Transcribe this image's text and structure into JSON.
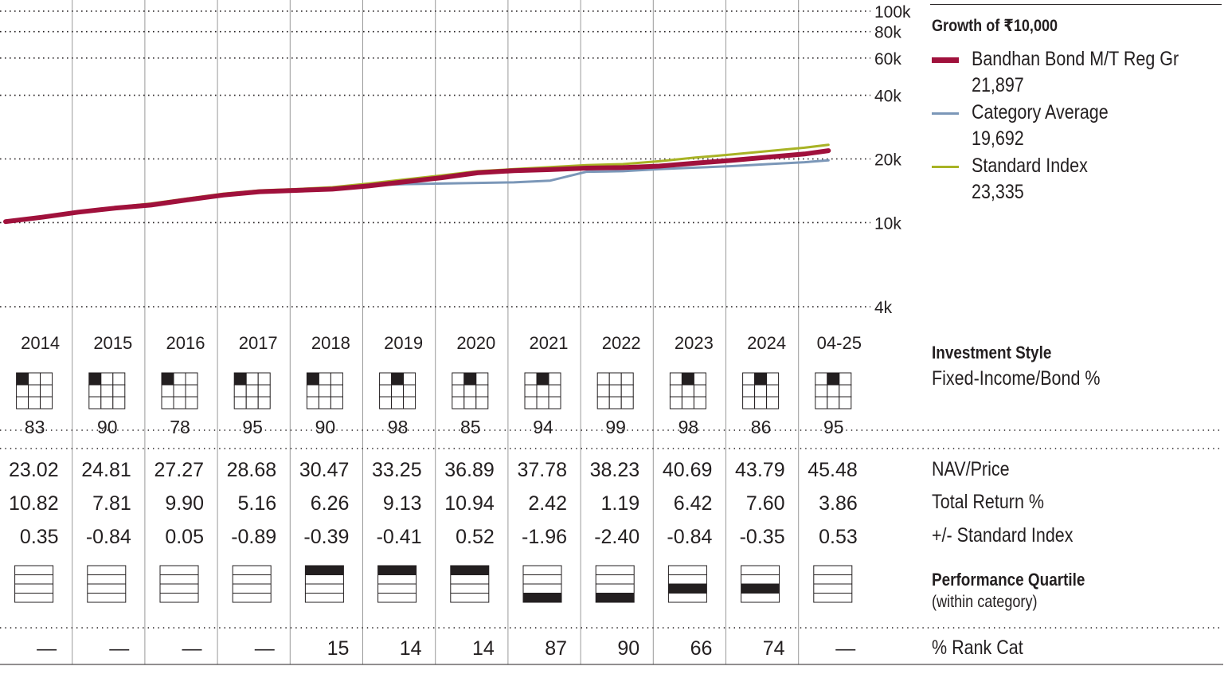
{
  "legend": {
    "title": "Growth of  ₹10,000",
    "series": [
      {
        "name": "Bandhan Bond M/T Reg Gr",
        "value": "21,897",
        "color": "#a0113c"
      },
      {
        "name": "Category Average",
        "value": "19,692",
        "color": "#7b97b8"
      },
      {
        "name": "Standard Index",
        "value": "23,335",
        "color": "#a8b325"
      }
    ]
  },
  "chart_data": {
    "type": "line",
    "title": "Growth of ₹10,000",
    "y_scale": "log",
    "ylim": [
      4000,
      100000
    ],
    "y_ticks": [
      {
        "value": 100000,
        "label": "100k"
      },
      {
        "value": 80000,
        "label": "80k"
      },
      {
        "value": 60000,
        "label": "60k"
      },
      {
        "value": 40000,
        "label": "40k"
      },
      {
        "value": 20000,
        "label": "20k"
      },
      {
        "value": 10000,
        "label": "10k"
      },
      {
        "value": 4000,
        "label": "4k"
      }
    ],
    "grid": true,
    "x": [
      2014.0,
      2014.5,
      2015.0,
      2015.5,
      2016.0,
      2016.5,
      2017.0,
      2017.5,
      2018.0,
      2018.5,
      2019.0,
      2019.5,
      2020.0,
      2020.5,
      2021.0,
      2021.5,
      2022.0,
      2022.5,
      2023.0,
      2023.5,
      2024.0,
      2024.5,
      2025.0,
      2025.33
    ],
    "series": [
      {
        "name": "Bandhan Bond M/T Reg Gr",
        "values": [
          10100,
          10600,
          11200,
          11700,
          12100,
          12800,
          13500,
          14000,
          14200,
          14400,
          14900,
          15600,
          16300,
          17200,
          17600,
          17800,
          18100,
          18200,
          18500,
          19100,
          19700,
          20400,
          21100,
          21897
        ]
      },
      {
        "name": "Category Average",
        "values": [
          10100,
          10650,
          11250,
          11750,
          12150,
          12850,
          13550,
          14050,
          14250,
          14600,
          15000,
          15200,
          15300,
          15400,
          15500,
          15800,
          17400,
          17500,
          17900,
          18200,
          18500,
          18900,
          19300,
          19692
        ]
      },
      {
        "name": "Standard Index",
        "values": [
          10200,
          10700,
          11300,
          11800,
          12300,
          13000,
          13700,
          14200,
          14400,
          14700,
          15300,
          16000,
          16700,
          17500,
          17900,
          18300,
          18700,
          18900,
          19500,
          20300,
          21000,
          21800,
          22600,
          23335
        ]
      }
    ],
    "years": [
      "2014",
      "2015",
      "2016",
      "2017",
      "2018",
      "2019",
      "2020",
      "2021",
      "2022",
      "2023",
      "2024",
      "04-25"
    ]
  },
  "style_box_rows": {
    "label": "Investment Style",
    "sublabel": "Fixed-Income/Bond %",
    "box_positions": [
      0,
      0,
      0,
      0,
      0,
      1,
      1,
      1,
      -1,
      1,
      1,
      1
    ],
    "values": [
      "83",
      "90",
      "78",
      "95",
      "90",
      "98",
      "85",
      "94",
      "99",
      "98",
      "86",
      "95"
    ]
  },
  "table": {
    "rows": [
      {
        "label": "NAV/Price",
        "values": [
          "23.02",
          "24.81",
          "27.27",
          "28.68",
          "30.47",
          "33.25",
          "36.89",
          "37.78",
          "38.23",
          "40.69",
          "43.79",
          "45.48"
        ]
      },
      {
        "label": "Total Return %",
        "values": [
          "10.82",
          "7.81",
          "9.90",
          "5.16",
          "6.26",
          "9.13",
          "10.94",
          "2.42",
          "1.19",
          "6.42",
          "7.60",
          "3.86"
        ]
      },
      {
        "label": "+/- Standard Index",
        "values": [
          "0.35",
          "-0.84",
          "0.05",
          "-0.89",
          "-0.39",
          "-0.41",
          "0.52",
          "-1.96",
          "-2.40",
          "-0.84",
          "-0.35",
          "0.53"
        ]
      }
    ]
  },
  "quartile": {
    "label": "Performance Quartile",
    "sublabel": "(within category)",
    "values": [
      0,
      0,
      0,
      0,
      1,
      1,
      1,
      4,
      4,
      3,
      3,
      0
    ]
  },
  "rank": {
    "label": "% Rank Cat",
    "values": [
      "—",
      "—",
      "—",
      "—",
      "15",
      "14",
      "14",
      "87",
      "90",
      "66",
      "74",
      "—"
    ]
  }
}
